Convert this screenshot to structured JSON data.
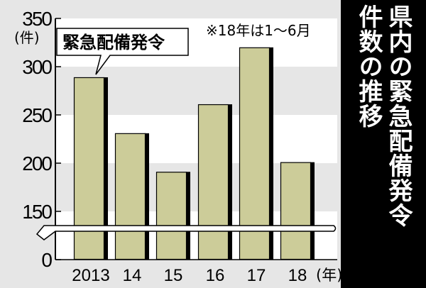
{
  "chart_data": {
    "type": "bar",
    "title": "県内の緊急配備発令件数の推移",
    "title_lines": [
      "県内の緊急配備発令",
      "件数の推移"
    ],
    "categories": [
      "2013",
      "14",
      "15",
      "16",
      "17",
      "18"
    ],
    "x_unit": "(年)",
    "series": [
      {
        "name": "緊急配備発令",
        "values": [
          289,
          231,
          191,
          261,
          320,
          201
        ]
      }
    ],
    "y_unit": "(件)",
    "yticks": [
      "0",
      "150",
      "200",
      "250",
      "300",
      "350"
    ],
    "ylim": [
      0,
      350
    ],
    "axis_break": "between 0 and 150",
    "note": "※18年は1～6月",
    "bar_color": "#cccc99",
    "grid": "alternating bands"
  }
}
